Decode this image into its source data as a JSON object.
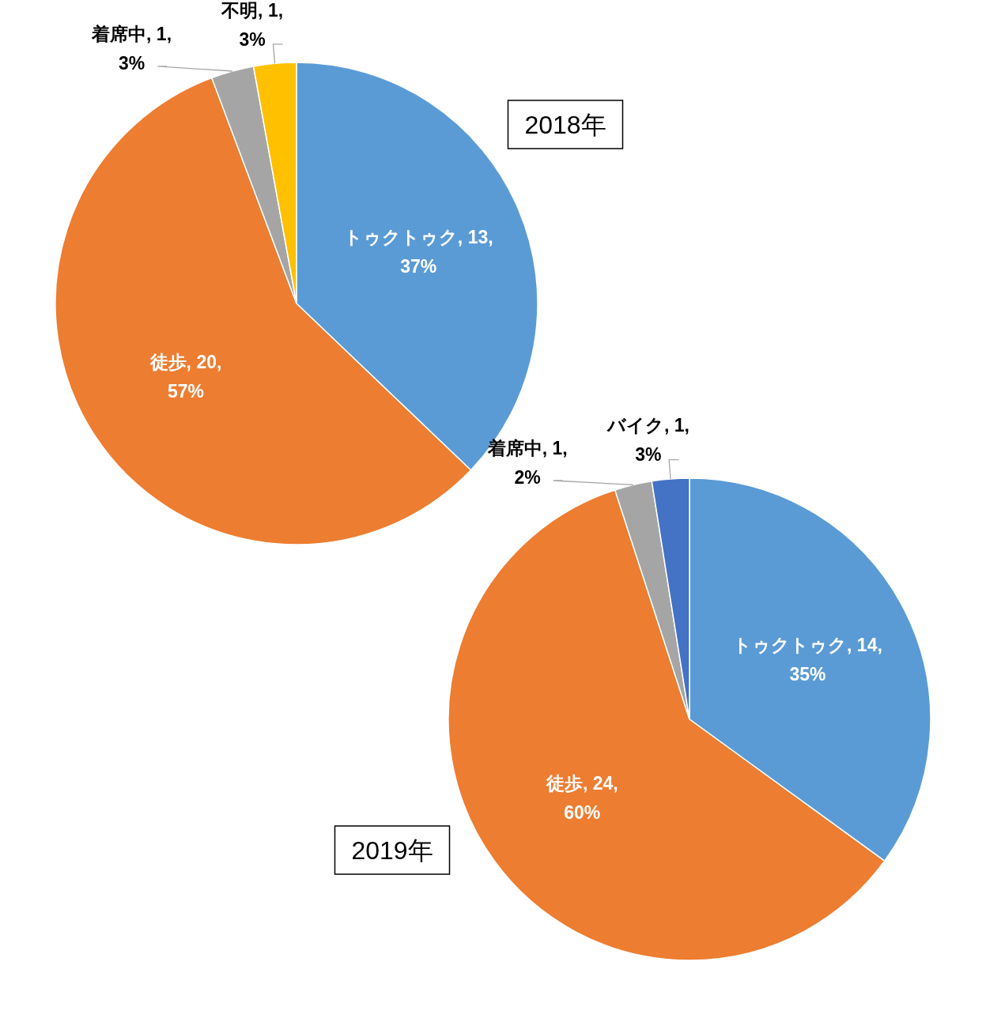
{
  "chart_data": [
    {
      "type": "pie",
      "title": "2018年",
      "categories": [
        "トゥクトゥク",
        "徒歩",
        "着席中",
        "不明"
      ],
      "values": [
        13,
        20,
        1,
        1
      ],
      "colors": [
        "#5b9bd5",
        "#ed7d31",
        "#a5a5a5",
        "#ffc000"
      ],
      "value_labels": [
        "13,\n37%",
        "20,\n57%",
        "1,\n3%",
        "1,\n3%"
      ]
    },
    {
      "type": "pie",
      "title": "2019年",
      "categories": [
        "トゥクトゥク",
        "徒歩",
        "着席中",
        "バイク"
      ],
      "values": [
        14,
        24,
        1,
        1
      ],
      "colors": [
        "#5b9bd5",
        "#ed7d31",
        "#a5a5a5",
        "#4472c4"
      ],
      "value_labels": [
        "14,\n35%",
        "24,\n60%",
        "1,\n2%",
        "1,\n3%"
      ]
    }
  ]
}
